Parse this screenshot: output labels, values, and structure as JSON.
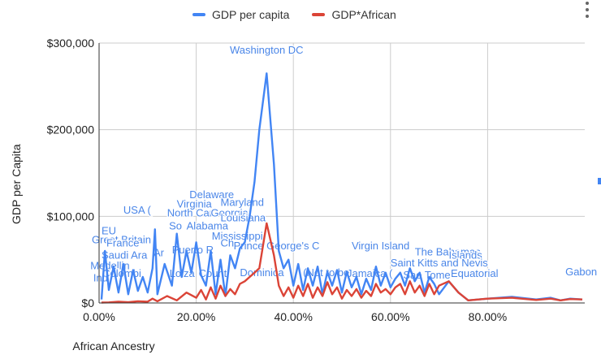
{
  "chart_data": {
    "type": "line",
    "xlabel": "African Ancestry",
    "ylabel": "GDP per Capita",
    "xlim": [
      0,
      1
    ],
    "ylim": [
      0,
      300000
    ],
    "x_ticks": [
      "0.00%",
      "20.00%",
      "40.00%",
      "60.00%",
      "80.00%"
    ],
    "y_ticks": [
      "$0",
      "$100,000",
      "$200,000",
      "$300,000"
    ],
    "legend_position": "top",
    "grid": true,
    "colors": {
      "gdp": "#4285f4",
      "gdp_african": "#db4437",
      "label": "#4a86e8"
    },
    "series": [
      {
        "name": "GDP per capita",
        "points": [
          [
            0.005,
            4000
          ],
          [
            0.012,
            60000
          ],
          [
            0.02,
            15000
          ],
          [
            0.03,
            42000
          ],
          [
            0.04,
            12000
          ],
          [
            0.05,
            45000
          ],
          [
            0.06,
            10000
          ],
          [
            0.07,
            38000
          ],
          [
            0.08,
            14000
          ],
          [
            0.09,
            30000
          ],
          [
            0.1,
            12000
          ],
          [
            0.11,
            40000
          ],
          [
            0.115,
            85000
          ],
          [
            0.12,
            10000
          ],
          [
            0.135,
            45000
          ],
          [
            0.15,
            20000
          ],
          [
            0.16,
            80000
          ],
          [
            0.17,
            30000
          ],
          [
            0.18,
            60000
          ],
          [
            0.19,
            35000
          ],
          [
            0.2,
            70000
          ],
          [
            0.21,
            32000
          ],
          [
            0.22,
            20000
          ],
          [
            0.23,
            60000
          ],
          [
            0.24,
            10000
          ],
          [
            0.25,
            50000
          ],
          [
            0.26,
            8000
          ],
          [
            0.27,
            55000
          ],
          [
            0.28,
            40000
          ],
          [
            0.29,
            63000
          ],
          [
            0.3,
            70000
          ],
          [
            0.31,
            100000
          ],
          [
            0.32,
            140000
          ],
          [
            0.33,
            200000
          ],
          [
            0.345,
            265000
          ],
          [
            0.36,
            160000
          ],
          [
            0.37,
            60000
          ],
          [
            0.38,
            40000
          ],
          [
            0.39,
            50000
          ],
          [
            0.4,
            20000
          ],
          [
            0.41,
            45000
          ],
          [
            0.42,
            15000
          ],
          [
            0.43,
            40000
          ],
          [
            0.44,
            20000
          ],
          [
            0.45,
            42000
          ],
          [
            0.46,
            10000
          ],
          [
            0.47,
            36000
          ],
          [
            0.48,
            20000
          ],
          [
            0.49,
            38000
          ],
          [
            0.5,
            12000
          ],
          [
            0.51,
            36000
          ],
          [
            0.52,
            18000
          ],
          [
            0.53,
            30000
          ],
          [
            0.54,
            10000
          ],
          [
            0.55,
            28000
          ],
          [
            0.56,
            15000
          ],
          [
            0.57,
            42000
          ],
          [
            0.58,
            20000
          ],
          [
            0.59,
            35000
          ],
          [
            0.6,
            18000
          ],
          [
            0.61,
            28000
          ],
          [
            0.62,
            35000
          ],
          [
            0.63,
            20000
          ],
          [
            0.64,
            40000
          ],
          [
            0.65,
            25000
          ],
          [
            0.66,
            35000
          ],
          [
            0.67,
            12000
          ],
          [
            0.68,
            30000
          ],
          [
            0.69,
            22000
          ],
          [
            0.7,
            10000
          ],
          [
            0.72,
            25000
          ],
          [
            0.74,
            12000
          ],
          [
            0.76,
            3000
          ],
          [
            0.8,
            5000
          ],
          [
            0.85,
            7000
          ],
          [
            0.9,
            4000
          ],
          [
            0.93,
            6000
          ],
          [
            0.95,
            3000
          ],
          [
            0.97,
            5000
          ],
          [
            0.995,
            4000
          ]
        ]
      },
      {
        "name": "GDP*African",
        "points": [
          [
            0.005,
            500
          ],
          [
            0.02,
            700
          ],
          [
            0.04,
            1500
          ],
          [
            0.06,
            800
          ],
          [
            0.08,
            2000
          ],
          [
            0.1,
            1500
          ],
          [
            0.11,
            5000
          ],
          [
            0.12,
            2000
          ],
          [
            0.14,
            8000
          ],
          [
            0.16,
            3000
          ],
          [
            0.18,
            12000
          ],
          [
            0.2,
            6000
          ],
          [
            0.21,
            15000
          ],
          [
            0.22,
            4000
          ],
          [
            0.23,
            18000
          ],
          [
            0.24,
            5000
          ],
          [
            0.25,
            20000
          ],
          [
            0.26,
            8000
          ],
          [
            0.27,
            16000
          ],
          [
            0.28,
            10000
          ],
          [
            0.29,
            22000
          ],
          [
            0.3,
            25000
          ],
          [
            0.31,
            30000
          ],
          [
            0.32,
            35000
          ],
          [
            0.33,
            40000
          ],
          [
            0.345,
            92000
          ],
          [
            0.36,
            55000
          ],
          [
            0.37,
            20000
          ],
          [
            0.38,
            8000
          ],
          [
            0.39,
            18000
          ],
          [
            0.4,
            6000
          ],
          [
            0.41,
            20000
          ],
          [
            0.42,
            8000
          ],
          [
            0.43,
            22000
          ],
          [
            0.44,
            6000
          ],
          [
            0.45,
            18000
          ],
          [
            0.46,
            8000
          ],
          [
            0.47,
            24000
          ],
          [
            0.48,
            10000
          ],
          [
            0.49,
            18000
          ],
          [
            0.5,
            5000
          ],
          [
            0.51,
            15000
          ],
          [
            0.52,
            8000
          ],
          [
            0.53,
            16000
          ],
          [
            0.54,
            6000
          ],
          [
            0.55,
            14000
          ],
          [
            0.56,
            8000
          ],
          [
            0.57,
            22000
          ],
          [
            0.58,
            12000
          ],
          [
            0.59,
            16000
          ],
          [
            0.6,
            10000
          ],
          [
            0.61,
            18000
          ],
          [
            0.62,
            22000
          ],
          [
            0.63,
            10000
          ],
          [
            0.64,
            25000
          ],
          [
            0.65,
            12000
          ],
          [
            0.66,
            20000
          ],
          [
            0.67,
            8000
          ],
          [
            0.68,
            22000
          ],
          [
            0.69,
            10000
          ],
          [
            0.7,
            20000
          ],
          [
            0.72,
            25000
          ],
          [
            0.74,
            12000
          ],
          [
            0.76,
            3000
          ],
          [
            0.8,
            5000
          ],
          [
            0.85,
            6000
          ],
          [
            0.9,
            3500
          ],
          [
            0.93,
            5000
          ],
          [
            0.95,
            3000
          ],
          [
            0.97,
            4500
          ],
          [
            0.995,
            4000
          ]
        ]
      }
    ],
    "annotations": [
      {
        "text": "Washington DC",
        "x": 0.345,
        "y": 288000
      },
      {
        "text": "Delaware",
        "x": 0.186,
        "y": 121000
      },
      {
        "text": "Virginia",
        "x": 0.16,
        "y": 110000
      },
      {
        "text": "Maryland",
        "x": 0.25,
        "y": 112000
      },
      {
        "text": "USA (",
        "x": 0.05,
        "y": 103000
      },
      {
        "text": "North Car",
        "x": 0.14,
        "y": 100000
      },
      {
        "text": "Georgia",
        "x": 0.23,
        "y": 100000
      },
      {
        "text": "Louisiana",
        "x": 0.25,
        "y": 94000
      },
      {
        "text": "So",
        "x": 0.144,
        "y": 85000
      },
      {
        "text": "Alabama",
        "x": 0.18,
        "y": 85000
      },
      {
        "text": "Mississippi",
        "x": 0.232,
        "y": 73000
      },
      {
        "text": "EU",
        "x": 0.005,
        "y": 79000
      },
      {
        "text": "Great Britain",
        "x": -0.015,
        "y": 69000
      },
      {
        "text": "France",
        "x": 0.015,
        "y": 65000
      },
      {
        "text": "Ch",
        "x": 0.25,
        "y": 65000
      },
      {
        "text": "Prince George's C",
        "x": 0.277,
        "y": 62000
      },
      {
        "text": "Virgin Island",
        "x": 0.52,
        "y": 62000
      },
      {
        "text": "Puerto R",
        "x": 0.15,
        "y": 57000
      },
      {
        "text": "Ar",
        "x": 0.112,
        "y": 54000
      },
      {
        "text": "The Bahamas",
        "x": 0.65,
        "y": 55000
      },
      {
        "text": "Islands",
        "x": 0.72,
        "y": 51000
      },
      {
        "text": "Saudi Ara",
        "x": 0.005,
        "y": 51000
      },
      {
        "text": "Saint Kitts and Nevis",
        "x": 0.6,
        "y": 42000
      },
      {
        "text": "Medellin",
        "x": -0.018,
        "y": 39000
      },
      {
        "text": "Colombi",
        "x": 0.007,
        "y": 30000
      },
      {
        "text": "Ind",
        "x": -0.012,
        "y": 25000
      },
      {
        "text": "Loiza",
        "x": 0.145,
        "y": 30000
      },
      {
        "text": "Count",
        "x": 0.205,
        "y": 30000
      },
      {
        "text": "Dominica",
        "x": 0.29,
        "y": 31000
      },
      {
        "text": "(Not to be",
        "x": 0.42,
        "y": 31000
      },
      {
        "text": "Jamaica (",
        "x": 0.51,
        "y": 30000
      },
      {
        "text": "Sao Tome",
        "x": 0.626,
        "y": 28000
      },
      {
        "text": "Equatorial",
        "x": 0.724,
        "y": 30000
      },
      {
        "text": "Gabon",
        "x": 0.96,
        "y": 32000
      }
    ]
  },
  "legend": {
    "items": [
      {
        "label": "GDP per capita",
        "color": "#4285f4"
      },
      {
        "label": "GDP*African",
        "color": "#db4437"
      }
    ]
  },
  "axis_titles": {
    "x": "African Ancestry",
    "y": "GDP per Capita"
  }
}
